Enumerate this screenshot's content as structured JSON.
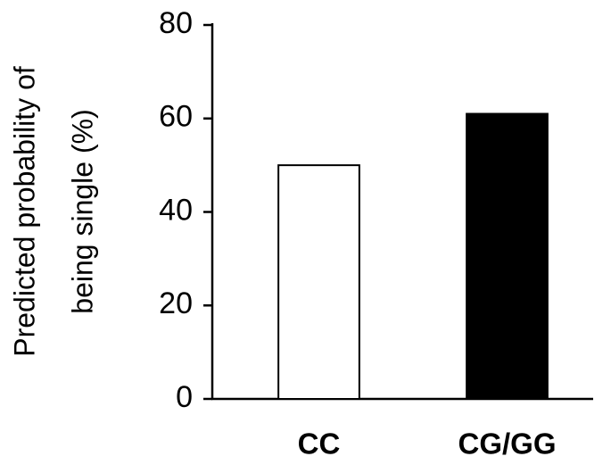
{
  "chart_data": {
    "type": "bar",
    "ylabel": [
      "Predicted probability of",
      "being single (%)"
    ],
    "categories": [
      "CC",
      "CG/GG"
    ],
    "values": [
      50,
      61
    ],
    "colors": [
      "#ffffff",
      "#000000"
    ],
    "ylim": [
      0,
      80
    ],
    "yticks": [
      0,
      20,
      40,
      60,
      80
    ],
    "grid": false
  }
}
